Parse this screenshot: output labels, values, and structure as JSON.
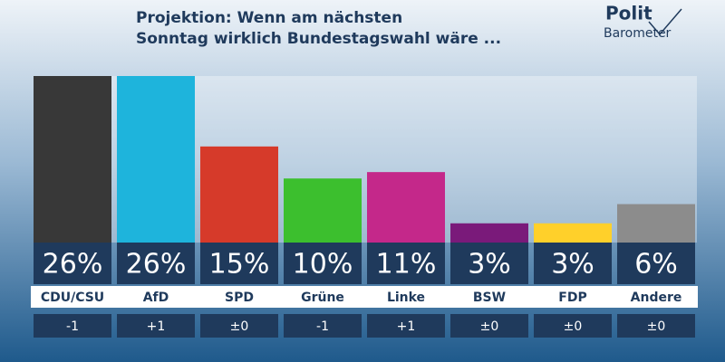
{
  "chart_data": {
    "type": "bar",
    "title": [
      "Projektion: Wenn am nächsten",
      "Sonntag wirklich Bundestagswahl wäre ..."
    ],
    "logo": [
      "Polit",
      "Barometer"
    ],
    "categories": [
      "CDU/CSU",
      "AfD",
      "SPD",
      "Grüne",
      "Linke",
      "BSW",
      "FDP",
      "Andere"
    ],
    "values": [
      26,
      26,
      15,
      10,
      11,
      3,
      3,
      6
    ],
    "value_labels": [
      "26%",
      "26%",
      "15%",
      "10%",
      "11%",
      "3%",
      "3%",
      "6%"
    ],
    "changes": [
      "-1",
      "+1",
      "±0",
      "-1",
      "+1",
      "±0",
      "±0",
      "±0"
    ],
    "colors": [
      "#383838",
      "#1eb4dc",
      "#d63a2a",
      "#3cbf2e",
      "#c4288a",
      "#7a1a7a",
      "#ffd02a",
      "#8c8c8c"
    ]
  }
}
